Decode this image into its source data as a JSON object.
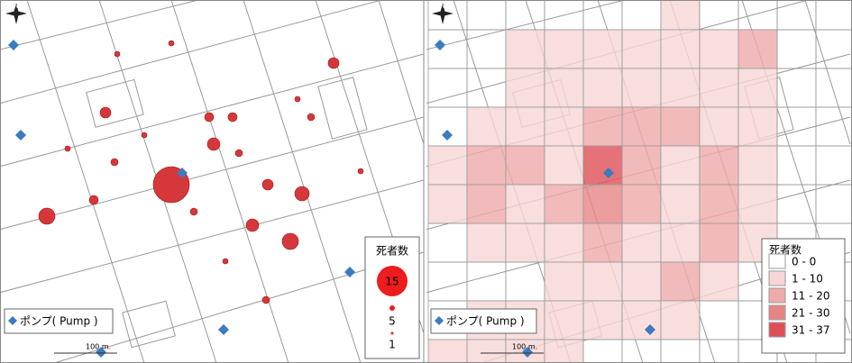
{
  "panels": [
    {
      "north": "N",
      "legend": {
        "title": "死者数",
        "sizes": [
          "15",
          "5",
          "1"
        ]
      },
      "pump_legend": "ポンプ( Pump )",
      "scale_label": "100 m."
    },
    {
      "north": "N",
      "legend": {
        "title": "死者数",
        "classes": [
          "0 - 0",
          "1 - 10",
          "11 - 20",
          "21 - 30",
          "31 - 37"
        ],
        "colors": [
          "#ffffff",
          "#f7d6d6",
          "#efaaaa",
          "#e78585",
          "#de4f58"
        ]
      },
      "pump_legend": "ポンプ( Pump )",
      "scale_label": "100 m.",
      "grid": [
        [
          0,
          0,
          0,
          0,
          0,
          0,
          1,
          0,
          0,
          0,
          0
        ],
        [
          0,
          0,
          1,
          1,
          1,
          1,
          1,
          1,
          2,
          0,
          0
        ],
        [
          0,
          0,
          1,
          1,
          1,
          1,
          1,
          1,
          1,
          0,
          0
        ],
        [
          0,
          1,
          1,
          1,
          2,
          2,
          2,
          1,
          1,
          0,
          0
        ],
        [
          1,
          2,
          2,
          1,
          4,
          2,
          1,
          2,
          1,
          0,
          0
        ],
        [
          1,
          2,
          1,
          2,
          3,
          2,
          1,
          2,
          1,
          0,
          0
        ],
        [
          0,
          1,
          1,
          1,
          2,
          1,
          1,
          2,
          1,
          0,
          0
        ],
        [
          0,
          0,
          0,
          1,
          1,
          1,
          2,
          1,
          0,
          0,
          0
        ],
        [
          0,
          1,
          1,
          1,
          1,
          1,
          1,
          0,
          0,
          0,
          0
        ],
        [
          1,
          1,
          1,
          1,
          0,
          0,
          0,
          0,
          0,
          0,
          0
        ]
      ]
    }
  ]
}
